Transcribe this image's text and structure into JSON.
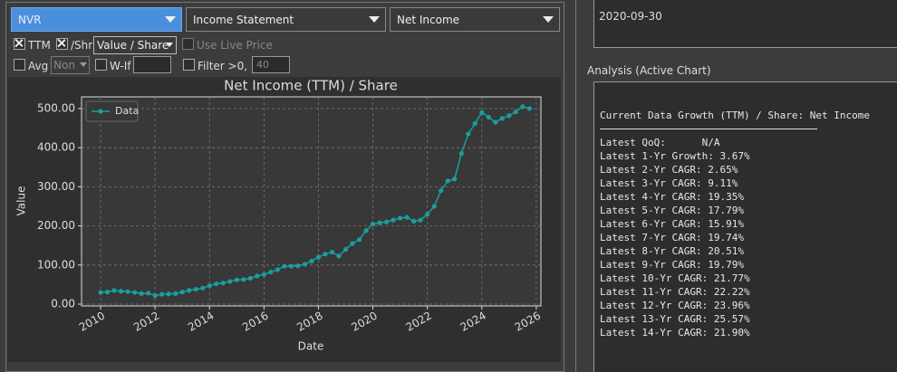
{
  "controls": {
    "ticker": "NVR",
    "statement": "Income Statement",
    "metric": "Net Income",
    "ttm": {
      "label": "TTM",
      "checked": true
    },
    "per_share": {
      "label": "/Shr",
      "checked": true
    },
    "mode": "Value / Share",
    "live_price": {
      "label": "Use Live Price",
      "checked": false
    },
    "avg": {
      "label": "Avg",
      "checked": false
    },
    "avg_mode": "Non",
    "what_if": {
      "label": "W-If",
      "checked": false
    },
    "filter": {
      "label": "Filter >0, <",
      "checked": false,
      "limit": "40"
    }
  },
  "date_panel": {
    "date": "2020-09-30"
  },
  "analysis": {
    "title": "Analysis (Active Chart)",
    "heading": "Current Data Growth (TTM) / Share: Net Income",
    "lines": [
      "Latest QoQ:      N/A",
      "Latest 1-Yr Growth: 3.67%",
      "Latest 2-Yr CAGR: 2.65%",
      "Latest 3-Yr CAGR: 9.11%",
      "Latest 4-Yr CAGR: 19.35%",
      "Latest 5-Yr CAGR: 17.79%",
      "Latest 6-Yr CAGR: 15.91%",
      "Latest 7-Yr CAGR: 19.74%",
      "Latest 8-Yr CAGR: 20.51%",
      "Latest 9-Yr CAGR: 19.79%",
      "Latest 10-Yr CAGR: 21.77%",
      "Latest 11-Yr CAGR: 22.22%",
      "Latest 12-Yr CAGR: 23.96%",
      "Latest 13-Yr CAGR: 25.57%",
      "Latest 14-Yr CAGR: 21.90%"
    ]
  },
  "chart_data": {
    "type": "line",
    "title": "Net Income (TTM) / Share",
    "x_label": "Date",
    "y_label": "Value",
    "x": [
      2010,
      2010.25,
      2010.5,
      2010.75,
      2011,
      2011.25,
      2011.5,
      2011.75,
      2012,
      2012.25,
      2012.5,
      2012.75,
      2013,
      2013.25,
      2013.5,
      2013.75,
      2014,
      2014.25,
      2014.5,
      2014.75,
      2015,
      2015.25,
      2015.5,
      2015.75,
      2016,
      2016.25,
      2016.5,
      2016.75,
      2017,
      2017.25,
      2017.5,
      2017.75,
      2018,
      2018.25,
      2018.5,
      2018.75,
      2019,
      2019.25,
      2019.5,
      2019.75,
      2020,
      2020.25,
      2020.5,
      2020.75,
      2021,
      2021.25,
      2021.5,
      2021.75,
      2022,
      2022.25,
      2022.5,
      2022.75,
      2023,
      2023.25,
      2023.5,
      2023.75,
      2024,
      2024.25,
      2024.5,
      2024.75,
      2025,
      2025.25,
      2025.5,
      2025.75
    ],
    "series": [
      {
        "name": "Data",
        "color": "#1a9e9e",
        "values": [
          30,
          31,
          35,
          33,
          32,
          30,
          27,
          28,
          22,
          25,
          26,
          27,
          31,
          35,
          38,
          41,
          47,
          52,
          54,
          58,
          62,
          63,
          66,
          72,
          76,
          82,
          88,
          97,
          97,
          98,
          102,
          110,
          120,
          128,
          133,
          123,
          140,
          155,
          165,
          188,
          205,
          208,
          210,
          215,
          220,
          222,
          212,
          215,
          230,
          250,
          290,
          315,
          320,
          385,
          435,
          462,
          490,
          478,
          465,
          475,
          482,
          492,
          505,
          500
        ]
      }
    ],
    "xlim": [
      2009.3,
      2026.17
    ],
    "xticks": [
      2010,
      2012,
      2014,
      2016,
      2018,
      2020,
      2022,
      2024,
      2026
    ],
    "ylim": [
      -4.6,
      530
    ],
    "yticks": [
      {
        "value": 0,
        "label": "0.00"
      },
      {
        "value": 100,
        "label": "100.00"
      },
      {
        "value": 200,
        "label": "200.00"
      },
      {
        "value": 300,
        "label": "300.00"
      },
      {
        "value": 400,
        "label": "400.00"
      },
      {
        "value": 500,
        "label": "500.00"
      }
    ],
    "grid": true,
    "legend": "upper-left"
  }
}
